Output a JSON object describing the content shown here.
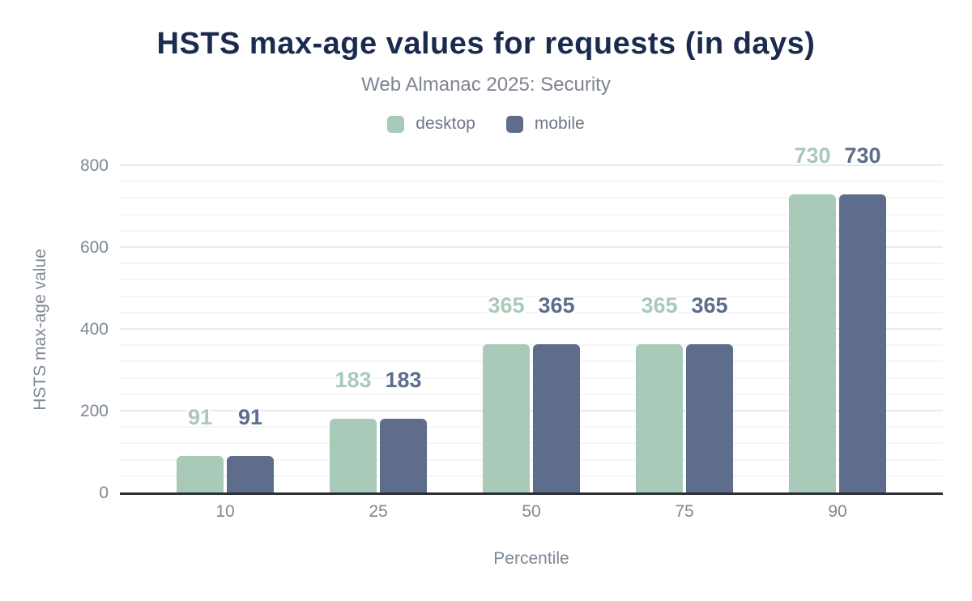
{
  "chart_data": {
    "type": "bar",
    "title": "HSTS max-age values for requests (in days)",
    "subtitle": "Web Almanac 2025: Security",
    "xlabel": "Percentile",
    "ylabel": "HSTS max-age value",
    "categories": [
      "10",
      "25",
      "50",
      "75",
      "90"
    ],
    "series": [
      {
        "name": "desktop",
        "color": "#a9cab8",
        "values": [
          91,
          183,
          365,
          365,
          730
        ]
      },
      {
        "name": "mobile",
        "color": "#5e6d8c",
        "values": [
          91,
          183,
          365,
          365,
          730
        ]
      }
    ],
    "ylim": [
      0,
      800
    ],
    "yticks": [
      0,
      200,
      400,
      600,
      800
    ],
    "y_major_step": 200,
    "y_minor_step": 40,
    "grid": true,
    "legend_position": "top",
    "colors": {
      "title": "#1b2b4d",
      "subtitle": "#7e8492",
      "axis_text": "#7e8795",
      "legend_text": "#6f7887",
      "axis_line": "#2d2e33",
      "grid_major": "#e9eaed",
      "grid_minor": "#f5f5f7",
      "background": "#ffffff"
    }
  }
}
